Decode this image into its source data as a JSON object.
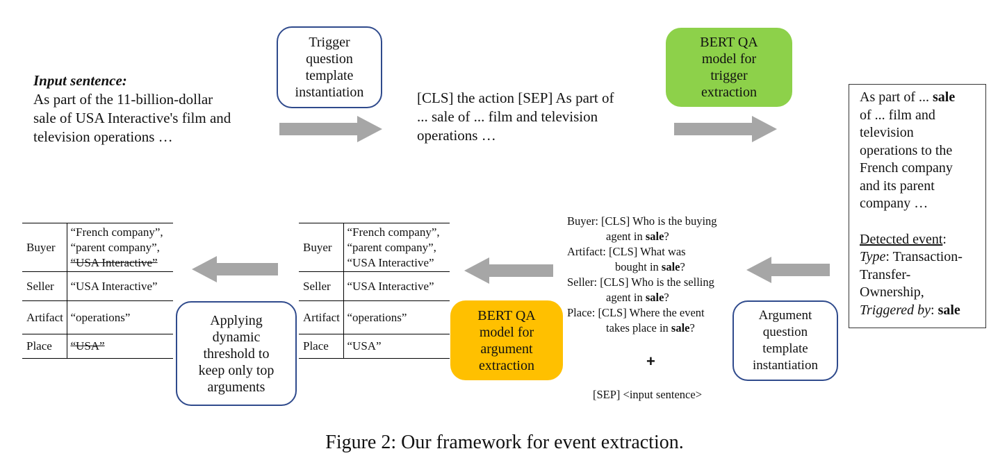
{
  "input": {
    "heading": "Input sentence:",
    "lines": [
      "As part of the 11-billion-dollar",
      "sale of USA Interactive's film and",
      "television operations …"
    ]
  },
  "trigger_template_box": {
    "lines": [
      "Trigger",
      "question",
      "template",
      "instantiation"
    ]
  },
  "trigger_query": {
    "lines": [
      "[CLS] the action [SEP] As part of",
      "... sale of ... film and television",
      "operations …"
    ]
  },
  "bert_trigger_box": {
    "lines": [
      "BERT QA",
      "model for",
      "trigger",
      "extraction"
    ]
  },
  "output_box": {
    "sentence_lines": [
      "As part of ... ",
      "sale",
      "of ... film and",
      "television",
      "operations  to the",
      "French company",
      "and its parent",
      "company …"
    ],
    "detected_label": "Detected event",
    "type_label": "Type",
    "type_value_lines": [
      ": Transaction-",
      "Transfer-",
      "Ownership,"
    ],
    "trig_label": "Triggered by",
    "trig_value": "sale"
  },
  "questions": {
    "buyer": {
      "pre": "Buyer: [CLS] Who is the buying",
      "cont": "agent in ",
      "bold": "sale",
      "end": "?"
    },
    "artifact": {
      "pre": "Artifact: [CLS] What was",
      "cont": "bought in ",
      "bold": "sale",
      "end": "?"
    },
    "seller": {
      "pre": "Seller: [CLS] Who is the selling",
      "cont": "agent in ",
      "bold": "sale",
      "end": "?"
    },
    "place": {
      "pre": "Place: [CLS] Where the event",
      "cont": "takes place in ",
      "bold": "sale",
      "end": "?"
    },
    "plus": "+",
    "sep_line": "[SEP] <input sentence>"
  },
  "arg_template_box": {
    "lines": [
      "Argument",
      "question",
      "template",
      "instantiation"
    ]
  },
  "bert_arg_box": {
    "lines": [
      "BERT QA",
      "model for",
      "argument",
      "extraction"
    ]
  },
  "threshold_box": {
    "lines": [
      "Applying",
      "dynamic",
      "threshold to",
      "keep only top",
      "arguments"
    ]
  },
  "mid_table": {
    "rows": [
      {
        "role": "Buyer",
        "values": [
          "“French company”,",
          "“parent company”,",
          "“USA Interactive”"
        ]
      },
      {
        "role": "Seller",
        "values": [
          "“USA Interactive”"
        ]
      },
      {
        "role": "Artifact",
        "values": [
          "“operations”"
        ]
      },
      {
        "role": "Place",
        "values": [
          "“USA”"
        ]
      }
    ]
  },
  "final_table": {
    "rows": [
      {
        "role": "Buyer",
        "values": [
          "“French company”,",
          "“parent company”,",
          "“USA Interactive”"
        ]
      },
      {
        "role": "Seller",
        "values": [
          "“USA Interactive”"
        ]
      },
      {
        "role": "Artifact",
        "values": [
          "“operations”"
        ]
      },
      {
        "role": "Place",
        "values": [
          "“USA”"
        ]
      }
    ]
  },
  "caption": "Figure 2: Our framework for event extraction.",
  "colors": {
    "outline": "#2f4a8c",
    "green": "#8dd14a",
    "orange": "#ffc000",
    "arrow": "#a6a6a6"
  }
}
